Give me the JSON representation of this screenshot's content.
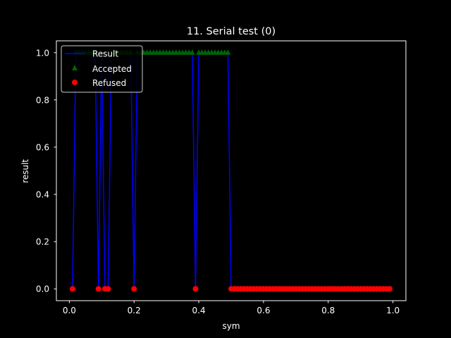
{
  "chart_data": {
    "type": "line",
    "title": "11. Serial test (0)",
    "xlabel": "sym",
    "ylabel": "result",
    "xlim": [
      -0.04,
      1.04
    ],
    "ylim": [
      -0.05,
      1.05
    ],
    "xticks": [
      "0.0",
      "0.2",
      "0.4",
      "0.6",
      "0.8",
      "1.0"
    ],
    "yticks": [
      "0.0",
      "0.2",
      "0.4",
      "0.6",
      "0.8",
      "1.0"
    ],
    "grid": false,
    "legend_position": "top-left",
    "legend": [
      "Result",
      "Accepted",
      "Refused"
    ],
    "series": [
      {
        "name": "Result",
        "kind": "line",
        "color": "#0000ff",
        "x": [
          0.01,
          0.02,
          0.03,
          0.04,
          0.05,
          0.06,
          0.07,
          0.08,
          0.09,
          0.1,
          0.11,
          0.12,
          0.13,
          0.14,
          0.15,
          0.16,
          0.17,
          0.18,
          0.19,
          0.2,
          0.21,
          0.22,
          0.23,
          0.24,
          0.25,
          0.26,
          0.27,
          0.28,
          0.29,
          0.3,
          0.31,
          0.32,
          0.33,
          0.34,
          0.35,
          0.36,
          0.37,
          0.38,
          0.39,
          0.4,
          0.41,
          0.42,
          0.43,
          0.44,
          0.45,
          0.46,
          0.47,
          0.48,
          0.49,
          0.5,
          0.51,
          0.52,
          0.53,
          0.54,
          0.55,
          0.56,
          0.57,
          0.58,
          0.59,
          0.6,
          0.61,
          0.62,
          0.63,
          0.64,
          0.65,
          0.66,
          0.67,
          0.68,
          0.69,
          0.7,
          0.71,
          0.72,
          0.73,
          0.74,
          0.75,
          0.76,
          0.77,
          0.78,
          0.79,
          0.8,
          0.81,
          0.82,
          0.83,
          0.84,
          0.85,
          0.86,
          0.87,
          0.88,
          0.89,
          0.9,
          0.91,
          0.92,
          0.93,
          0.94,
          0.95,
          0.96,
          0.97,
          0.98,
          0.99
        ],
        "y": [
          0,
          1,
          1,
          1,
          1,
          1,
          1,
          1,
          0,
          1,
          0,
          0,
          1,
          1,
          1,
          1,
          1,
          1,
          1,
          0,
          1,
          1,
          1,
          1,
          1,
          1,
          1,
          1,
          1,
          1,
          1,
          1,
          1,
          1,
          1,
          1,
          1,
          1,
          0,
          1,
          1,
          1,
          1,
          1,
          1,
          1,
          1,
          1,
          1,
          0,
          0,
          0,
          0,
          0,
          0,
          0,
          0,
          0,
          0,
          0,
          0,
          0,
          0,
          0,
          0,
          0,
          0,
          0,
          0,
          0,
          0,
          0,
          0,
          0,
          0,
          0,
          0,
          0,
          0,
          0,
          0,
          0,
          0,
          0,
          0,
          0,
          0,
          0,
          0,
          0,
          0,
          0,
          0,
          0,
          0,
          0,
          0,
          0,
          0
        ]
      },
      {
        "name": "Accepted",
        "kind": "marker",
        "marker": "triangle",
        "color": "#006400",
        "x": [
          0.02,
          0.03,
          0.04,
          0.05,
          0.06,
          0.07,
          0.08,
          0.1,
          0.13,
          0.14,
          0.15,
          0.16,
          0.17,
          0.18,
          0.19,
          0.21,
          0.22,
          0.23,
          0.24,
          0.25,
          0.26,
          0.27,
          0.28,
          0.29,
          0.3,
          0.31,
          0.32,
          0.33,
          0.34,
          0.35,
          0.36,
          0.37,
          0.38,
          0.4,
          0.41,
          0.42,
          0.43,
          0.44,
          0.45,
          0.46,
          0.47,
          0.48,
          0.49
        ],
        "y": [
          1,
          1,
          1,
          1,
          1,
          1,
          1,
          1,
          1,
          1,
          1,
          1,
          1,
          1,
          1,
          1,
          1,
          1,
          1,
          1,
          1,
          1,
          1,
          1,
          1,
          1,
          1,
          1,
          1,
          1,
          1,
          1,
          1,
          1,
          1,
          1,
          1,
          1,
          1,
          1,
          1,
          1,
          1
        ]
      },
      {
        "name": "Refused",
        "kind": "marker",
        "marker": "circle",
        "color": "#ff0000",
        "x": [
          0.01,
          0.09,
          0.11,
          0.12,
          0.2,
          0.39,
          0.5,
          0.51,
          0.52,
          0.53,
          0.54,
          0.55,
          0.56,
          0.57,
          0.58,
          0.59,
          0.6,
          0.61,
          0.62,
          0.63,
          0.64,
          0.65,
          0.66,
          0.67,
          0.68,
          0.69,
          0.7,
          0.71,
          0.72,
          0.73,
          0.74,
          0.75,
          0.76,
          0.77,
          0.78,
          0.79,
          0.8,
          0.81,
          0.82,
          0.83,
          0.84,
          0.85,
          0.86,
          0.87,
          0.88,
          0.89,
          0.9,
          0.91,
          0.92,
          0.93,
          0.94,
          0.95,
          0.96,
          0.97,
          0.98,
          0.99
        ],
        "y": [
          0,
          0,
          0,
          0,
          0,
          0,
          0,
          0,
          0,
          0,
          0,
          0,
          0,
          0,
          0,
          0,
          0,
          0,
          0,
          0,
          0,
          0,
          0,
          0,
          0,
          0,
          0,
          0,
          0,
          0,
          0,
          0,
          0,
          0,
          0,
          0,
          0,
          0,
          0,
          0,
          0,
          0,
          0,
          0,
          0,
          0,
          0,
          0,
          0,
          0,
          0,
          0,
          0,
          0,
          0,
          0
        ]
      }
    ],
    "colors": {
      "background": "#000000",
      "axes": "#ffffff",
      "text": "#ffffff"
    }
  }
}
